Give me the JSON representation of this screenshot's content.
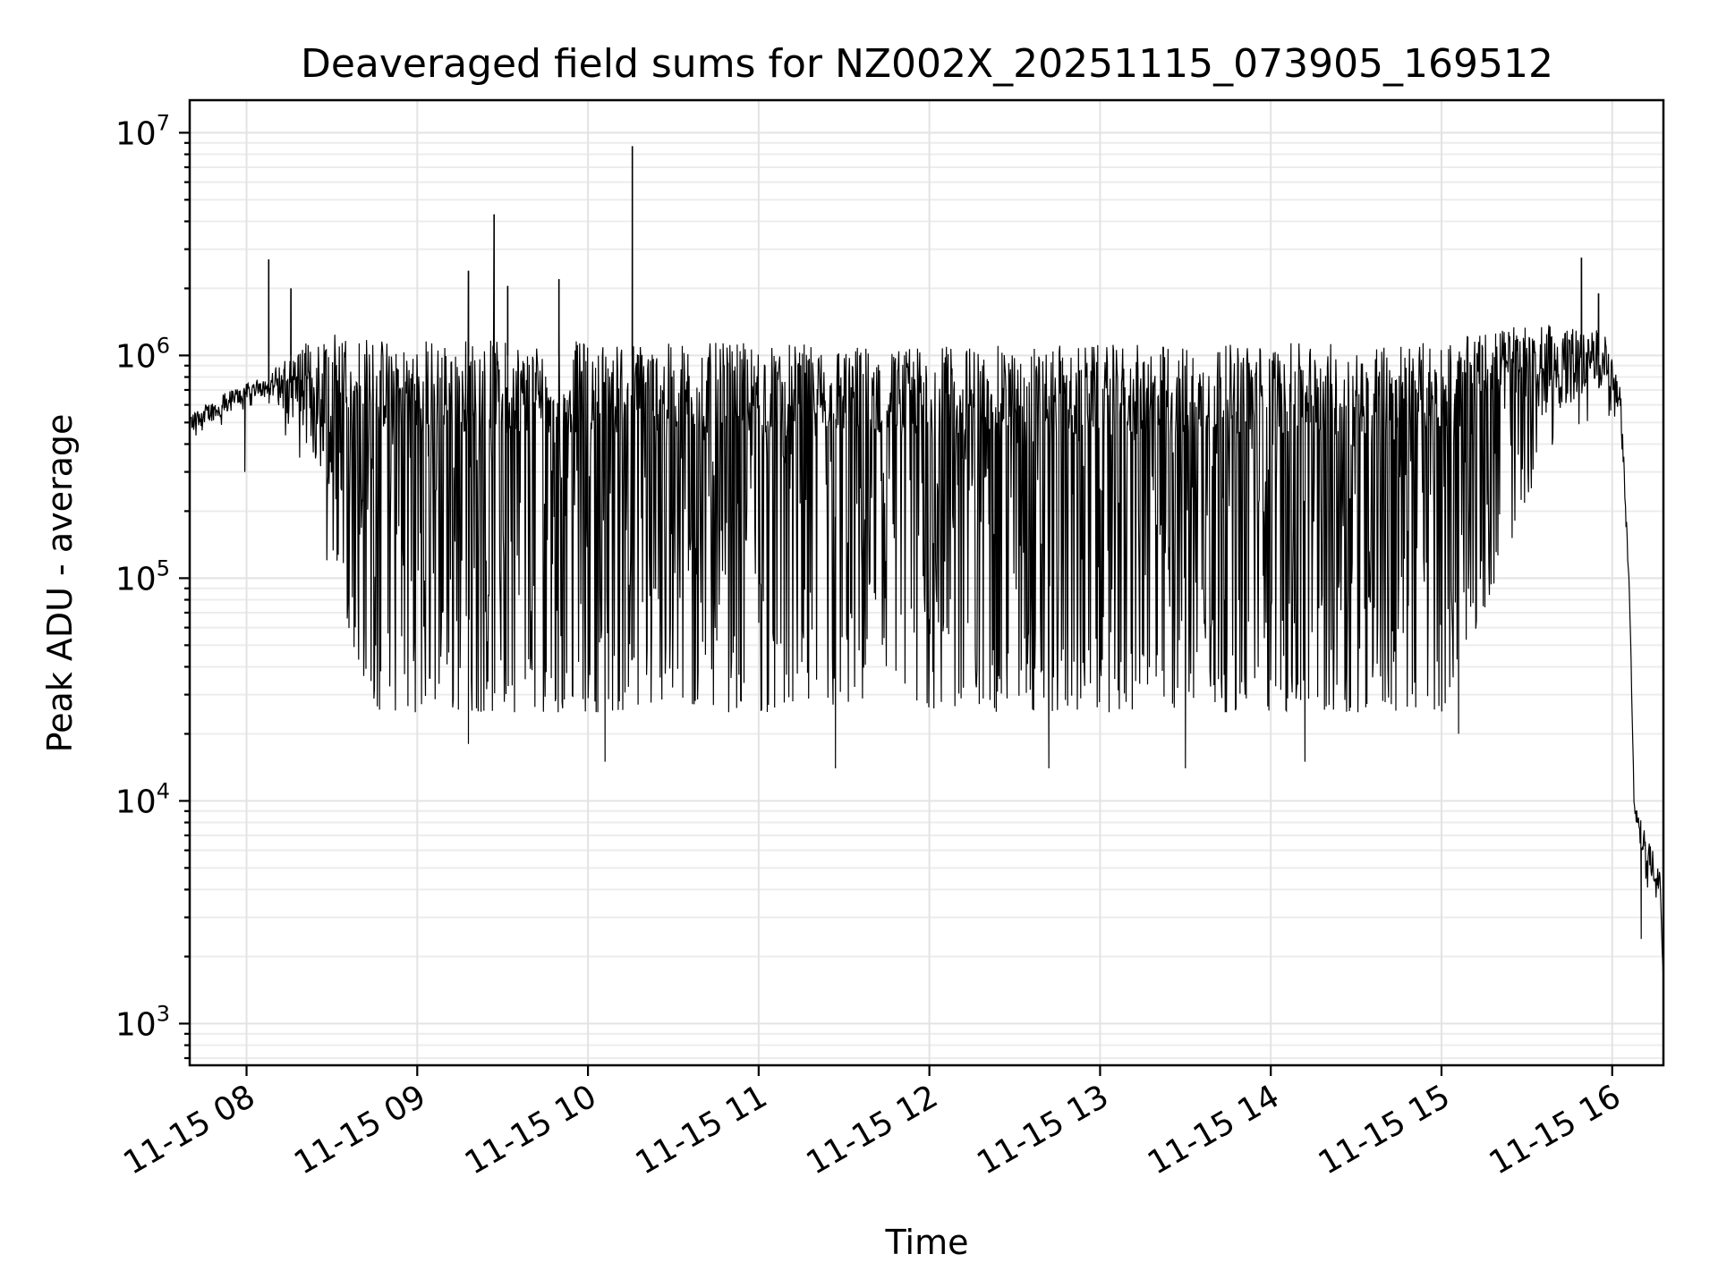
{
  "chart_data": {
    "type": "line",
    "title": "Deaveraged field sums for NZ002X_20251115_073905_169512",
    "xlabel": "Time",
    "ylabel": "Peak ADU - average",
    "yscale": "log",
    "xlim_hours": [
      7.667,
      16.3
    ],
    "ylim": [
      650,
      14000000
    ],
    "grid": "on",
    "x_tick_values_hours": [
      8,
      9,
      10,
      11,
      12,
      13,
      14,
      15,
      16
    ],
    "x_tick_labels": [
      "11-15 08",
      "11-15 09",
      "11-15 10",
      "11-15 11",
      "11-15 12",
      "11-15 13",
      "11-15 14",
      "11-15 15",
      "11-15 16"
    ],
    "y_ticks": [
      {
        "value": 1000,
        "base": "10",
        "exp": "3"
      },
      {
        "value": 10000,
        "base": "10",
        "exp": "4"
      },
      {
        "value": 100000,
        "base": "10",
        "exp": "5"
      },
      {
        "value": 1000000,
        "base": "10",
        "exp": "6"
      },
      {
        "value": 10000000,
        "base": "10",
        "exp": "7"
      }
    ],
    "series": [
      {
        "name": "Peak ADU - average",
        "color": "#000000",
        "envelope": [
          {
            "t": 7.67,
            "upper": 550000,
            "lower": 420000
          },
          {
            "t": 7.9,
            "upper": 700000,
            "lower": 500000
          },
          {
            "t": 8.1,
            "upper": 800000,
            "lower": 650000
          },
          {
            "t": 8.3,
            "upper": 1100000,
            "lower": 350000
          },
          {
            "t": 8.5,
            "upper": 1300000,
            "lower": 100000
          },
          {
            "t": 8.75,
            "upper": 1200000,
            "lower": 25000
          },
          {
            "t": 9.0,
            "upper": 1200000,
            "lower": 25000
          },
          {
            "t": 12.0,
            "upper": 1100000,
            "lower": 25000
          },
          {
            "t": 15.0,
            "upper": 1150000,
            "lower": 25000
          },
          {
            "t": 15.3,
            "upper": 1300000,
            "lower": 90000
          },
          {
            "t": 15.6,
            "upper": 1400000,
            "lower": 350000
          },
          {
            "t": 15.95,
            "upper": 1300000,
            "lower": 550000
          },
          {
            "t": 16.05,
            "upper": 700000,
            "lower": 500000
          },
          {
            "t": 16.1,
            "upper": 100000,
            "lower": 80000
          },
          {
            "t": 16.13,
            "upper": 10000,
            "lower": 8000
          },
          {
            "t": 16.2,
            "upper": 7000,
            "lower": 4000
          },
          {
            "t": 16.28,
            "upper": 5000,
            "lower": 3500
          },
          {
            "t": 16.3,
            "upper": 1500,
            "lower": 1500
          }
        ],
        "spikes": [
          {
            "t": 8.13,
            "value": 2700000
          },
          {
            "t": 8.26,
            "value": 2000000
          },
          {
            "t": 9.3,
            "value": 2400000
          },
          {
            "t": 9.45,
            "value": 4300000
          },
          {
            "t": 9.53,
            "value": 2050000
          },
          {
            "t": 9.83,
            "value": 2200000
          },
          {
            "t": 10.26,
            "value": 8700000
          },
          {
            "t": 15.82,
            "value": 2750000
          },
          {
            "t": 15.92,
            "value": 1900000
          }
        ],
        "dips": [
          {
            "t": 7.99,
            "value": 300000
          },
          {
            "t": 9.3,
            "value": 18000
          },
          {
            "t": 10.1,
            "value": 15000
          },
          {
            "t": 11.45,
            "value": 14000
          },
          {
            "t": 12.7,
            "value": 14000
          },
          {
            "t": 13.5,
            "value": 14000
          },
          {
            "t": 14.2,
            "value": 15000
          },
          {
            "t": 15.1,
            "value": 20000
          },
          {
            "t": 16.17,
            "value": 2400
          }
        ]
      }
    ]
  }
}
